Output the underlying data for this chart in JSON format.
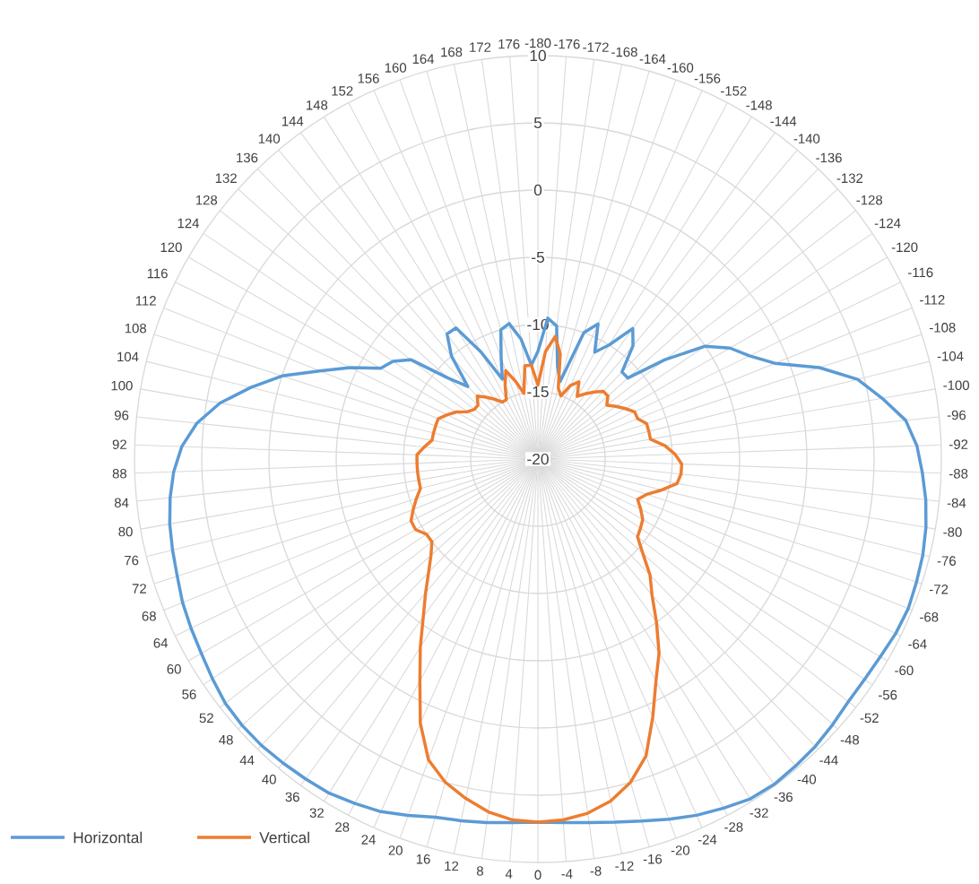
{
  "chart_data": {
    "type": "radar",
    "categories": [
      "-180",
      "-176",
      "-172",
      "-168",
      "-164",
      "-160",
      "-156",
      "-152",
      "-148",
      "-144",
      "-140",
      "-136",
      "-132",
      "-128",
      "-124",
      "-120",
      "-116",
      "-112",
      "-108",
      "-104",
      "-100",
      "-96",
      "-92",
      "-88",
      "-84",
      "-80",
      "-76",
      "-72",
      "-68",
      "-64",
      "-60",
      "-56",
      "-52",
      "-48",
      "-44",
      "-40",
      "-36",
      "-32",
      "-28",
      "-24",
      "-20",
      "-16",
      "-12",
      "-8",
      "-4",
      "0",
      "4",
      "8",
      "12",
      "16",
      "20",
      "24",
      "28",
      "32",
      "36",
      "40",
      "44",
      "48",
      "52",
      "56",
      "60",
      "64",
      "68",
      "72",
      "76",
      "80",
      "84",
      "88",
      "92",
      "96",
      "100",
      "104",
      "108",
      "112",
      "116",
      "120",
      "124",
      "128",
      "132",
      "136",
      "140",
      "144",
      "148",
      "152",
      "156",
      "160",
      "164",
      "168",
      "172",
      "176"
    ],
    "series": [
      {
        "name": "Horizontal",
        "color": "#5b9bd5",
        "values": [
          -12,
          -9.5,
          -10,
          -13,
          -14,
          -10,
          -9,
          -11,
          -10,
          -8,
          -9,
          -11,
          -11,
          -8,
          -5,
          -3.5,
          -2.5,
          -1,
          2,
          4.5,
          6,
          7.5,
          8.2,
          8.6,
          9,
          9.3,
          9.5,
          9.6,
          9.7,
          9.6,
          9.4,
          9.3,
          9.3,
          9.5,
          9.7,
          9.8,
          9.9,
          9.8,
          9.4,
          9,
          8.5,
          8,
          7.6,
          7.3,
          7.1,
          7,
          7.1,
          7.3,
          7.5,
          7.7,
          8.2,
          8.7,
          9,
          9.3,
          9.4,
          9.5,
          9.6,
          9.6,
          9.5,
          9.2,
          8.9,
          8.7,
          8.5,
          8.2,
          8,
          7.8,
          7.5,
          7.1,
          6.5,
          5.5,
          4,
          2,
          0,
          -2.5,
          -4.5,
          -6.5,
          -7,
          -8,
          -11,
          -12.5,
          -10,
          -8.5,
          -8.5,
          -11,
          -13.5,
          -12,
          -10,
          -9.7,
          -11,
          -13
        ]
      },
      {
        "name": "Vertical",
        "color": "#ed7d31",
        "values": [
          -14.5,
          -12,
          -10.8,
          -12,
          -14.5,
          -15,
          -14,
          -13.5,
          -14.5,
          -14,
          -13.5,
          -13,
          -13,
          -13.5,
          -13,
          -12.5,
          -12,
          -12,
          -11.5,
          -11.5,
          -11.5,
          -10.5,
          -9.8,
          -9.3,
          -9.3,
          -9.5,
          -10.5,
          -11.5,
          -12,
          -11.5,
          -11,
          -10.8,
          -10.6,
          -9.5,
          -8,
          -6.8,
          -5,
          -3,
          -1.3,
          1,
          3.5,
          5,
          6,
          6.6,
          6.9,
          7,
          6.9,
          6.5,
          5.8,
          5,
          3.8,
          1.5,
          -1.3,
          -3.5,
          -5.5,
          -7,
          -8.3,
          -9.3,
          -10,
          -10,
          -9.5,
          -9.5,
          -10,
          -10.5,
          -11,
          -11,
          -11,
          -11,
          -11,
          -11.5,
          -12,
          -12,
          -12,
          -12,
          -12.5,
          -13,
          -13.7,
          -14,
          -14,
          -13.5,
          -14,
          -14.5,
          -15,
          -15,
          -14,
          -13,
          -14,
          -15,
          -13,
          -13
        ]
      }
    ],
    "ylim": [
      -20,
      10
    ],
    "yticks": [
      -20,
      -15,
      -10,
      -5,
      0,
      5,
      10
    ],
    "grid": true,
    "legend": "bottom left"
  }
}
